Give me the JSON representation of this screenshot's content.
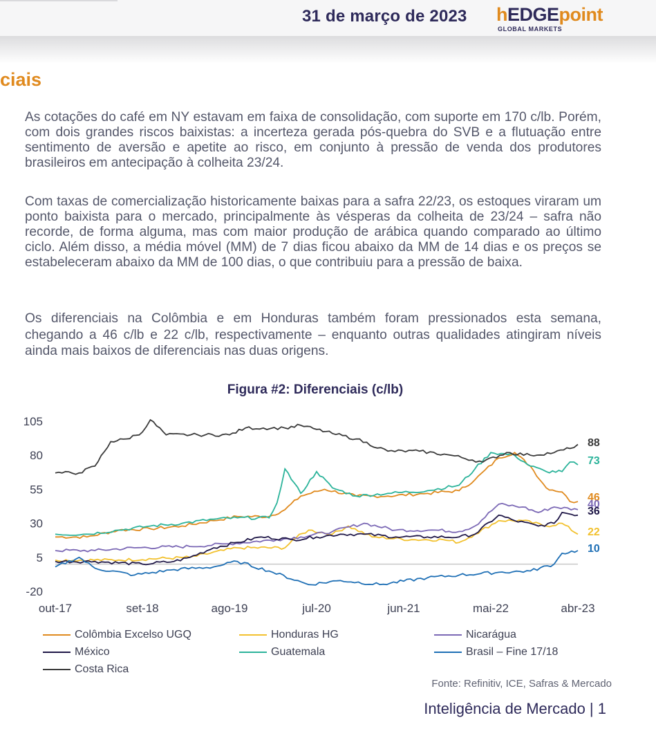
{
  "header": {
    "date": "31 de março de 2023",
    "logo": {
      "prefix": "h",
      "middle": "EDGE",
      "suffix": "point",
      "tagline": "GLOBAL MARKETS"
    }
  },
  "section_title": "ciais",
  "paragraphs": [
    "As cotações do café em NY estavam em faixa de consolidação, com suporte em 170 c/lb. Porém, com dois grandes riscos baixistas: a incerteza gerada pós-quebra do SVB e a flutuação entre sentimento de aversão e apetite ao risco, em conjunto à pressão de venda dos produtores brasileiros em antecipação à colheita 23/24.",
    "Com taxas de comercialização historicamente baixas para a safra 22/23, os estoques viraram um ponto baixista para o mercado, principalmente às vésperas da colheita de 23/24 – safra não recorde, de forma alguma, mas com maior produção de arábica quando comparado ao último ciclo. Além disso, a média móvel (MM) de 7 dias ficou abaixo da MM de 14 dias e os preços se estabeleceram abaixo da MM de 100 dias, o que contribuiu para a pressão de baixa.",
    "Os diferenciais na Colômbia e em Honduras também foram pressionados esta semana, chegando a 46 c/lb e 22 c/lb, respectivamente – enquanto outras qualidades atingiram níveis ainda mais baixos de diferenciais nas duas origens."
  ],
  "source": "Fonte: Refinitiv, ICE, Safras & Mercado",
  "footer": "Inteligência de Mercado | 1",
  "chart_data": {
    "type": "line",
    "title": "Figura #2: Diferenciais (c/lb)",
    "xlabel": "",
    "ylabel": "",
    "ylim": [
      -20,
      105
    ],
    "yticks": [
      105,
      80,
      55,
      30,
      5,
      -20
    ],
    "xlim": [
      "2017-10",
      "2023-04"
    ],
    "x_tick_labels": [
      "out-17",
      "set-18",
      "ago-19",
      "jul-20",
      "jun-21",
      "mai-22",
      "abr-23"
    ],
    "grid": false,
    "zero_line": true,
    "legend_position": "bottom",
    "series": [
      {
        "name": "Colômbia Excelso UGQ",
        "color": "#e08a1e",
        "end_label": "46",
        "points": [
          [
            "2017-10",
            20
          ],
          [
            "2018-02",
            20
          ],
          [
            "2018-06",
            25
          ],
          [
            "2018-10",
            26
          ],
          [
            "2019-02",
            28
          ],
          [
            "2019-06",
            32
          ],
          [
            "2019-09",
            35
          ],
          [
            "2020-01",
            35
          ],
          [
            "2020-03",
            40
          ],
          [
            "2020-05",
            50
          ],
          [
            "2020-08",
            55
          ],
          [
            "2020-12",
            50
          ],
          [
            "2021-04",
            50
          ],
          [
            "2021-09",
            52
          ],
          [
            "2022-01",
            54
          ],
          [
            "2022-03",
            62
          ],
          [
            "2022-06",
            78
          ],
          [
            "2022-08",
            82
          ],
          [
            "2022-10",
            72
          ],
          [
            "2022-12",
            56
          ],
          [
            "2023-02",
            53
          ],
          [
            "2023-03",
            46
          ],
          [
            "2023-04",
            46
          ]
        ]
      },
      {
        "name": "Honduras HG",
        "color": "#f2c12e",
        "end_label": "22",
        "points": [
          [
            "2017-10",
            3
          ],
          [
            "2018-06",
            3
          ],
          [
            "2019-03",
            5
          ],
          [
            "2019-09",
            12
          ],
          [
            "2020-03",
            12
          ],
          [
            "2020-04",
            18
          ],
          [
            "2020-06",
            25
          ],
          [
            "2020-09",
            22
          ],
          [
            "2020-11",
            28
          ],
          [
            "2021-02",
            20
          ],
          [
            "2021-07",
            18
          ],
          [
            "2021-11",
            18
          ],
          [
            "2022-01",
            16
          ],
          [
            "2022-03",
            22
          ],
          [
            "2022-06",
            32
          ],
          [
            "2022-09",
            32
          ],
          [
            "2022-12",
            28
          ],
          [
            "2023-02",
            30
          ],
          [
            "2023-04",
            22
          ]
        ]
      },
      {
        "name": "Nicarágua",
        "color": "#7b68b5",
        "end_label": "40",
        "points": [
          [
            "2017-10",
            10
          ],
          [
            "2018-03",
            10
          ],
          [
            "2018-08",
            12
          ],
          [
            "2019-03",
            13
          ],
          [
            "2019-08",
            15
          ],
          [
            "2020-02",
            18
          ],
          [
            "2020-05",
            20
          ],
          [
            "2020-09",
            24
          ],
          [
            "2021-01",
            30
          ],
          [
            "2021-05",
            25
          ],
          [
            "2021-10",
            25
          ],
          [
            "2022-01",
            24
          ],
          [
            "2022-03",
            28
          ],
          [
            "2022-06",
            44
          ],
          [
            "2022-09",
            42
          ],
          [
            "2022-11",
            38
          ],
          [
            "2023-01",
            42
          ],
          [
            "2023-04",
            40
          ]
        ]
      },
      {
        "name": "México",
        "color": "#1f1747",
        "end_label": "36",
        "points": [
          [
            "2017-10",
            2
          ],
          [
            "2018-03",
            2
          ],
          [
            "2018-09",
            0
          ],
          [
            "2019-01",
            2
          ],
          [
            "2019-03",
            5
          ],
          [
            "2019-06",
            12
          ],
          [
            "2019-09",
            16
          ],
          [
            "2019-12",
            20
          ],
          [
            "2020-04",
            18
          ],
          [
            "2020-07",
            20
          ],
          [
            "2020-10",
            22
          ],
          [
            "2021-01",
            22
          ],
          [
            "2021-05",
            20
          ],
          [
            "2021-09",
            20
          ],
          [
            "2022-01",
            20
          ],
          [
            "2022-03",
            22
          ],
          [
            "2022-06",
            36
          ],
          [
            "2022-08",
            32
          ],
          [
            "2022-11",
            28
          ],
          [
            "2023-01",
            30
          ],
          [
            "2023-02",
            38
          ],
          [
            "2023-04",
            36
          ]
        ]
      },
      {
        "name": "Guatemala",
        "color": "#2bb39a",
        "end_label": "73",
        "points": [
          [
            "2017-10",
            22
          ],
          [
            "2018-02",
            22
          ],
          [
            "2018-06",
            25
          ],
          [
            "2018-10",
            28
          ],
          [
            "2019-02",
            30
          ],
          [
            "2019-06",
            33
          ],
          [
            "2019-09",
            34
          ],
          [
            "2020-01",
            34
          ],
          [
            "2020-02",
            45
          ],
          [
            "2020-03",
            70
          ],
          [
            "2020-05",
            52
          ],
          [
            "2020-07",
            68
          ],
          [
            "2020-09",
            56
          ],
          [
            "2020-12",
            50
          ],
          [
            "2021-04",
            52
          ],
          [
            "2021-09",
            54
          ],
          [
            "2022-01",
            58
          ],
          [
            "2022-03",
            70
          ],
          [
            "2022-05",
            82
          ],
          [
            "2022-08",
            80
          ],
          [
            "2022-10",
            72
          ],
          [
            "2022-12",
            68
          ],
          [
            "2023-02",
            68
          ],
          [
            "2023-03",
            75
          ],
          [
            "2023-04",
            73
          ]
        ]
      },
      {
        "name": "Brasil – Fine 17/18",
        "color": "#1e6fb5",
        "end_label": "10",
        "points": [
          [
            "2017-10",
            -2
          ],
          [
            "2018-01",
            5
          ],
          [
            "2018-03",
            -3
          ],
          [
            "2018-08",
            -8
          ],
          [
            "2019-01",
            -4
          ],
          [
            "2019-06",
            -2
          ],
          [
            "2019-09",
            2
          ],
          [
            "2020-01",
            -5
          ],
          [
            "2020-06",
            -15
          ],
          [
            "2020-10",
            -12
          ],
          [
            "2021-03",
            -15
          ],
          [
            "2021-09",
            -10
          ],
          [
            "2022-01",
            -8
          ],
          [
            "2022-06",
            -6
          ],
          [
            "2022-10",
            -5
          ],
          [
            "2023-01",
            0
          ],
          [
            "2023-02",
            8
          ],
          [
            "2023-04",
            10
          ]
        ]
      },
      {
        "name": "Costa Rica",
        "color": "#3a3a3a",
        "end_label": "88",
        "points": [
          [
            "2017-10",
            67
          ],
          [
            "2018-01",
            67
          ],
          [
            "2018-03",
            72
          ],
          [
            "2018-05",
            90
          ],
          [
            "2018-07",
            92
          ],
          [
            "2018-09",
            97
          ],
          [
            "2018-10",
            106
          ],
          [
            "2018-12",
            95
          ],
          [
            "2019-04",
            95
          ],
          [
            "2019-08",
            95
          ],
          [
            "2019-10",
            100
          ],
          [
            "2020-03",
            100
          ],
          [
            "2020-05",
            102
          ],
          [
            "2020-07",
            99
          ],
          [
            "2020-09",
            96
          ],
          [
            "2020-12",
            92
          ],
          [
            "2021-04",
            83
          ],
          [
            "2021-08",
            83
          ],
          [
            "2021-12",
            80
          ],
          [
            "2022-04",
            75
          ],
          [
            "2022-07",
            82
          ],
          [
            "2022-10",
            80
          ],
          [
            "2023-01",
            82
          ],
          [
            "2023-03",
            85
          ],
          [
            "2023-04",
            88
          ]
        ]
      }
    ]
  }
}
